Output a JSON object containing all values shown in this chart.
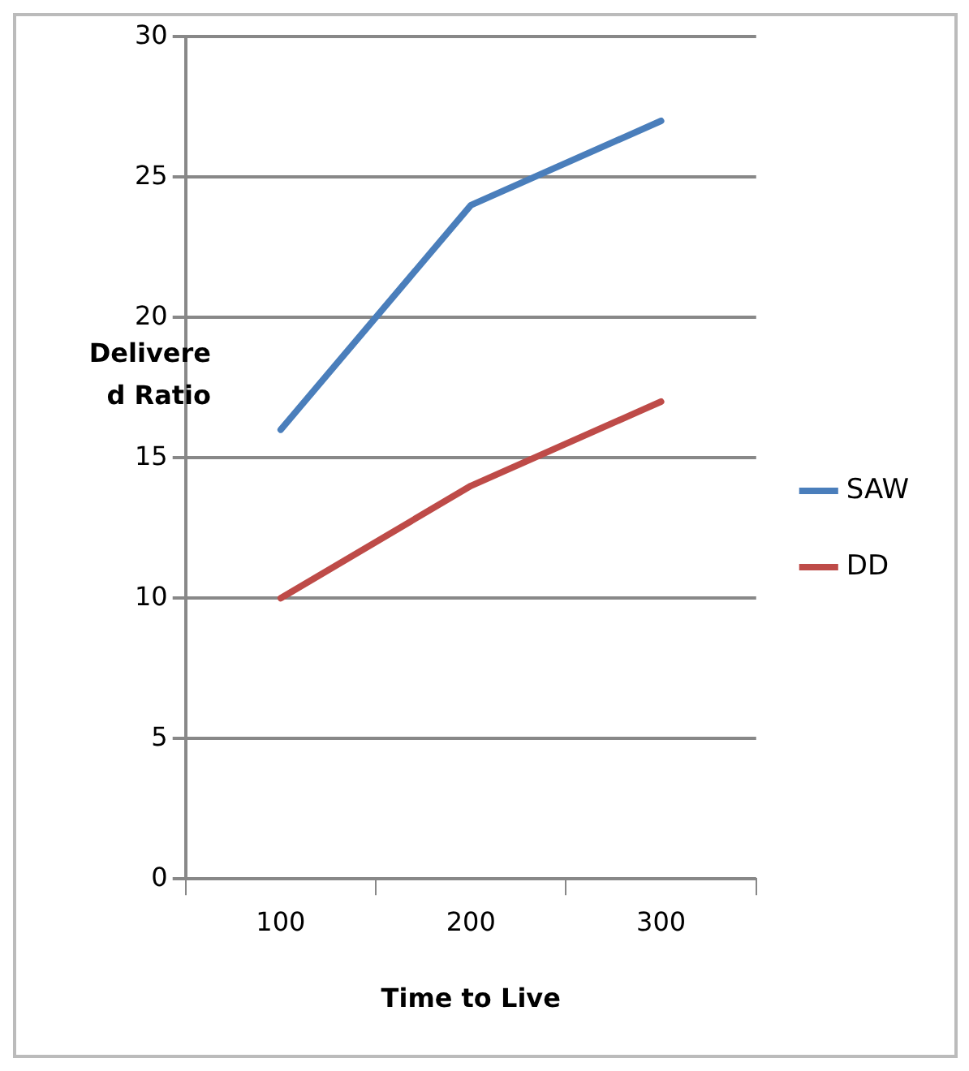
{
  "chart_data": {
    "type": "line",
    "xlabel": "Time to Live",
    "ylabel": "Delivere d Ratio",
    "categories": [
      "100",
      "200",
      "300"
    ],
    "series": [
      {
        "name": "SAW",
        "color": "#4a7ebb",
        "values": [
          16,
          24,
          27
        ]
      },
      {
        "name": "DD",
        "color": "#be4b48",
        "values": [
          10,
          14,
          17
        ]
      }
    ],
    "ylim": [
      0,
      30
    ],
    "yticks": [
      0,
      5,
      10,
      15,
      20,
      25,
      30
    ],
    "grid": "y",
    "legend": "right",
    "marker": "none",
    "line_style": "solid"
  }
}
